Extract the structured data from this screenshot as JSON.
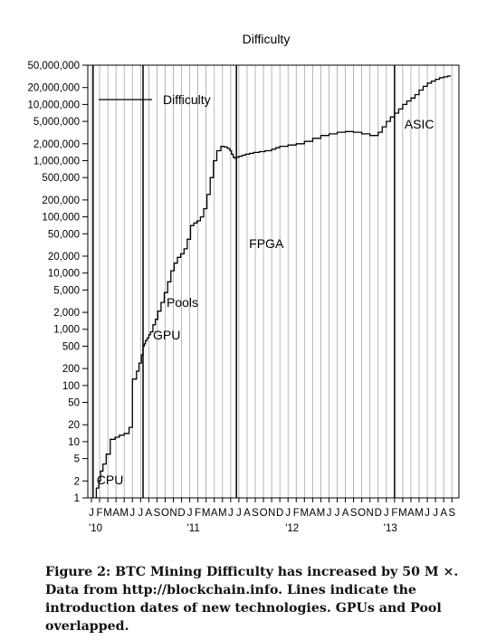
{
  "chart_data": {
    "type": "line",
    "title": "Difficulty",
    "y_scale": "log",
    "ylim": [
      1,
      50000000
    ],
    "y_ticks": [
      {
        "v": 1,
        "label": "1"
      },
      {
        "v": 2,
        "label": "2"
      },
      {
        "v": 5,
        "label": "5"
      },
      {
        "v": 10,
        "label": "10"
      },
      {
        "v": 20,
        "label": "20"
      },
      {
        "v": 50,
        "label": "50"
      },
      {
        "v": 100,
        "label": "100"
      },
      {
        "v": 200,
        "label": "200"
      },
      {
        "v": 500,
        "label": "500"
      },
      {
        "v": 1000,
        "label": "1,000"
      },
      {
        "v": 2000,
        "label": "2,000"
      },
      {
        "v": 5000,
        "label": "5,000"
      },
      {
        "v": 10000,
        "label": "10,000"
      },
      {
        "v": 20000,
        "label": "20,000"
      },
      {
        "v": 50000,
        "label": "50,000"
      },
      {
        "v": 100000,
        "label": "100,000"
      },
      {
        "v": 200000,
        "label": "200,000"
      },
      {
        "v": 500000,
        "label": "500,000"
      },
      {
        "v": 1000000,
        "label": "1,000,000"
      },
      {
        "v": 2000000,
        "label": "2,000,000"
      },
      {
        "v": 5000000,
        "label": "5,000,000"
      },
      {
        "v": 10000000,
        "label": "10,000,000"
      },
      {
        "v": 20000000,
        "label": "20,000,000"
      },
      {
        "v": 50000000,
        "label": "50,000,000"
      }
    ],
    "x_month_labels": [
      "J",
      "F",
      "M",
      "A",
      "M",
      "J",
      "J",
      "A",
      "S",
      "O",
      "N",
      "D",
      "J",
      "F",
      "M",
      "A",
      "M",
      "J",
      "J",
      "A",
      "S",
      "O",
      "N",
      "D",
      "J",
      "F",
      "M",
      "A",
      "M",
      "J",
      "J",
      "A",
      "S",
      "O",
      "N",
      "D",
      "J",
      "F",
      "M",
      "A",
      "M",
      "J",
      "J",
      "A",
      "S"
    ],
    "x_year_labels": [
      {
        "month_index": 0,
        "label": "'10"
      },
      {
        "month_index": 12,
        "label": "'11"
      },
      {
        "month_index": 24,
        "label": "'12"
      },
      {
        "month_index": 36,
        "label": "'13"
      }
    ],
    "grid": "vertical-monthly",
    "legend": {
      "label": "Difficulty",
      "placement": "top-left"
    },
    "series": [
      {
        "name": "Difficulty",
        "x": [
          0.5,
          0.6,
          0.9,
          1.1,
          1.4,
          1.8,
          2.3,
          2.9,
          3.4,
          4.0,
          4.6,
          5.0,
          5.5,
          5.8,
          6.1,
          6.3,
          6.45,
          6.6,
          6.8,
          7.0,
          7.2,
          7.5,
          7.8,
          8.1,
          8.5,
          8.9,
          9.3,
          9.7,
          10.1,
          10.5,
          10.9,
          11.3,
          11.7,
          12.1,
          12.5,
          12.9,
          13.3,
          13.7,
          14.1,
          14.5,
          14.9,
          15.3,
          15.8,
          16.2,
          16.6,
          16.9,
          17.1,
          17.3,
          17.5,
          17.7,
          18.0,
          18.4,
          18.8,
          19.3,
          19.8,
          20.5,
          21.2,
          22.0,
          22.5,
          23.0,
          24.0,
          25.0,
          26.0,
          27.0,
          28.0,
          29.0,
          30.0,
          31.0,
          32.0,
          33.0,
          34.0,
          35.0,
          35.5,
          36.0,
          36.5,
          37.0,
          37.5,
          38.0,
          38.5,
          39.0,
          39.5,
          40.0,
          40.5,
          41.0,
          41.5,
          42.0,
          42.5,
          43.0,
          43.5,
          43.8
        ],
        "values": [
          1,
          1.5,
          2,
          3,
          4,
          6,
          11,
          12,
          13,
          14,
          18,
          130,
          180,
          250,
          350,
          500,
          550,
          630,
          700,
          800,
          900,
          1200,
          1500,
          2100,
          3000,
          4500,
          7000,
          11000,
          15000,
          19000,
          22000,
          27000,
          40000,
          70000,
          78000,
          85000,
          100000,
          140000,
          250000,
          500000,
          1000000,
          1500000,
          1800000,
          1750000,
          1650000,
          1500000,
          1300000,
          1150000,
          1100000,
          1150000,
          1200000,
          1250000,
          1300000,
          1350000,
          1400000,
          1450000,
          1500000,
          1600000,
          1700000,
          1800000,
          1900000,
          2000000,
          2200000,
          2500000,
          2800000,
          3000000,
          3200000,
          3300000,
          3200000,
          3000000,
          2800000,
          3200000,
          4000000,
          5000000,
          6000000,
          7000000,
          8300000,
          10000000,
          11500000,
          13000000,
          15000000,
          18000000,
          21000000,
          24000000,
          26000000,
          28000000,
          30000000,
          31000000,
          32000000,
          33000000
        ]
      }
    ],
    "annotations": [
      {
        "label": "CPU",
        "month": 0.2
      },
      {
        "label": "GPU",
        "month": 6.3
      },
      {
        "label": "Pools",
        "month": 6.3
      },
      {
        "label": "FPGA",
        "month": 17.7
      },
      {
        "label": "ASIC",
        "month": 37.0
      }
    ]
  },
  "caption": {
    "bold_lead": "Figure 2: BTC Mining Difficulty has increased by 50 M ×.",
    "rest": "Data from http://blockchain.info. Lines indicate the introduction dates of new technologies. GPUs and Pool overlapped."
  }
}
